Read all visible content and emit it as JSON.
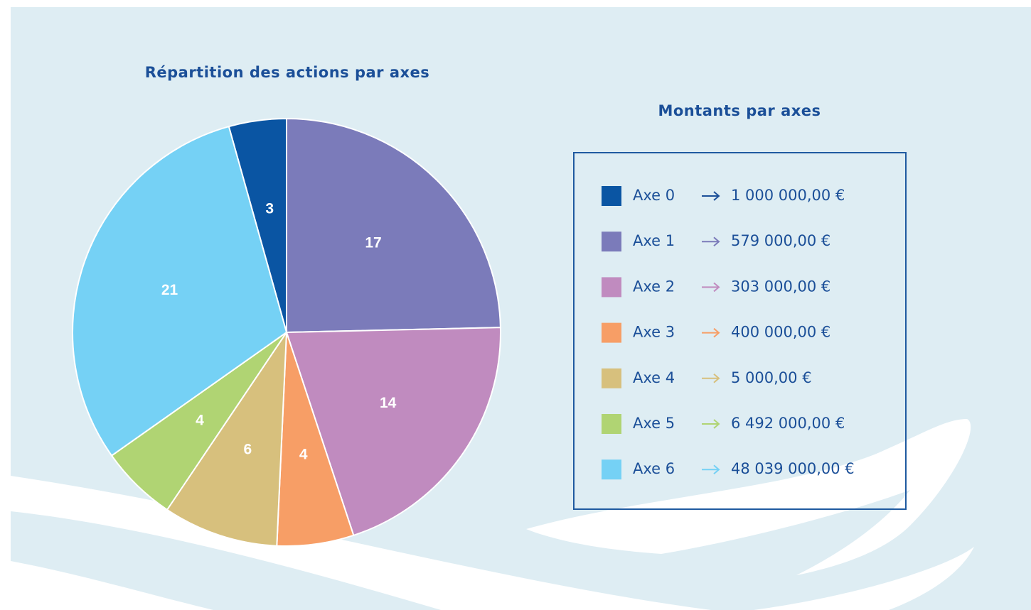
{
  "chart_data": {
    "type": "pie",
    "title": "Répartition des actions par axes",
    "legend_title": "Montants par axes",
    "categories": [
      "Axe 0",
      "Axe 1",
      "Axe 2",
      "Axe 3",
      "Axe 4",
      "Axe 5",
      "Axe 6"
    ],
    "values": [
      3,
      17,
      14,
      4,
      6,
      4,
      21
    ],
    "colors": [
      "#0a55a3",
      "#7b7bba",
      "#c08bbf",
      "#f79e66",
      "#d7c07d",
      "#b0d473",
      "#75d1f5"
    ],
    "amounts": [
      "1 000 000,00 €",
      "579 000,00 €",
      "303 000,00 €",
      "400 000,00 €",
      "5 000,00 €",
      "6 492 000,00 €",
      "48 039 000,00 €"
    ],
    "legend": "right"
  }
}
